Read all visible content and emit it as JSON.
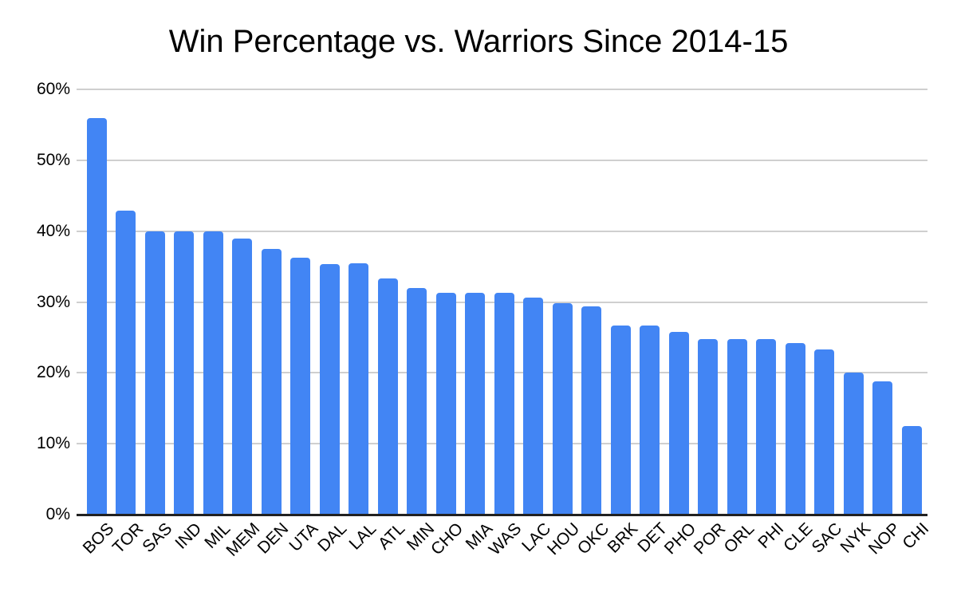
{
  "chart_data": {
    "type": "bar",
    "title": "Win Percentage vs. Warriors Since 2014-15",
    "categories": [
      "BOS",
      "TOR",
      "SAS",
      "IND",
      "MIL",
      "MEM",
      "DEN",
      "UTA",
      "DAL",
      "LAL",
      "ATL",
      "MIN",
      "CHO",
      "MIA",
      "WAS",
      "LAC",
      "HOU",
      "OKC",
      "BRK",
      "DET",
      "PHO",
      "POR",
      "ORL",
      "PHI",
      "CLE",
      "SAC",
      "NYK",
      "NOP",
      "CHI"
    ],
    "values": [
      56.0,
      42.9,
      40.0,
      40.0,
      40.0,
      38.9,
      37.5,
      36.2,
      35.3,
      35.5,
      33.3,
      32.0,
      31.3,
      31.3,
      31.3,
      30.6,
      29.8,
      29.4,
      26.7,
      26.7,
      25.8,
      24.8,
      24.8,
      24.8,
      24.2,
      23.3,
      20.0,
      18.8,
      12.5
    ],
    "unit": "%",
    "xlabel": "",
    "ylabel": "",
    "ylim": [
      0,
      60
    ],
    "yticks": [
      0,
      10,
      20,
      30,
      40,
      50,
      60
    ],
    "ytick_labels": [
      "0%",
      "10%",
      "20%",
      "30%",
      "40%",
      "50%",
      "60%"
    ],
    "grid": true,
    "legend_position": "none",
    "bar_color": "#4285f4",
    "gridline_color": "#cfcfcf",
    "axis_color": "#212121",
    "text_color": "#000000",
    "background_color": "#ffffff"
  }
}
